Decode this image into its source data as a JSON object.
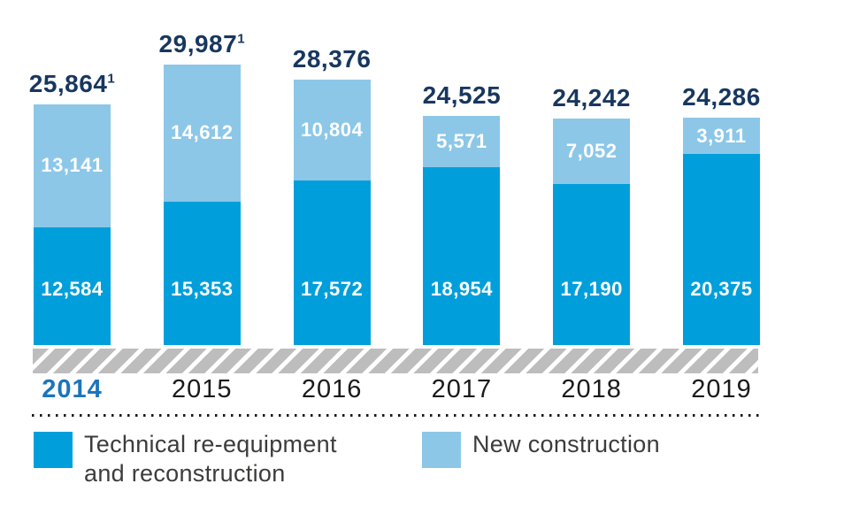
{
  "chart_data": {
    "type": "bar",
    "stacked": true,
    "title": "",
    "xlabel": "",
    "ylabel": "",
    "grid": false,
    "legend_position": "bottom",
    "categories": [
      "2014",
      "2015",
      "2016",
      "2017",
      "2018",
      "2019"
    ],
    "series": [
      {
        "name": "Technical re-equipment and reconstruction",
        "color": "#009fdb",
        "values": [
          12584,
          15353,
          17572,
          18954,
          17190,
          20375
        ],
        "labels": [
          "12,584",
          "15,353",
          "17,572",
          "18,954",
          "17,190",
          "20,375"
        ]
      },
      {
        "name": "New construction",
        "color": "#8cc7e8",
        "values": [
          13141,
          14612,
          10804,
          5571,
          7052,
          3911
        ],
        "labels": [
          "13,141",
          "14,612",
          "10,804",
          "5,571",
          "7,052",
          "3,911"
        ]
      }
    ],
    "totals": [
      {
        "label": "25,864",
        "footnote": "1"
      },
      {
        "label": "29,987",
        "footnote": "1"
      },
      {
        "label": "28,376",
        "footnote": ""
      },
      {
        "label": "24,525",
        "footnote": ""
      },
      {
        "label": "24,242",
        "footnote": ""
      },
      {
        "label": "24,286",
        "footnote": ""
      }
    ],
    "highlighted_category": "2014",
    "colors": {
      "total_label": "#17375f",
      "bar_label": "#ffffff",
      "year_active": "#1c75bc",
      "year_default": "#1a1a1a",
      "hatch_gray": "#bdbdbd",
      "dotted_line": "#1a1a1a",
      "legend_text": "#3c3c3b"
    }
  },
  "legend": {
    "items": [
      {
        "label": "Technical re-equipment\nand reconstruction"
      },
      {
        "label": "New construction"
      }
    ]
  }
}
